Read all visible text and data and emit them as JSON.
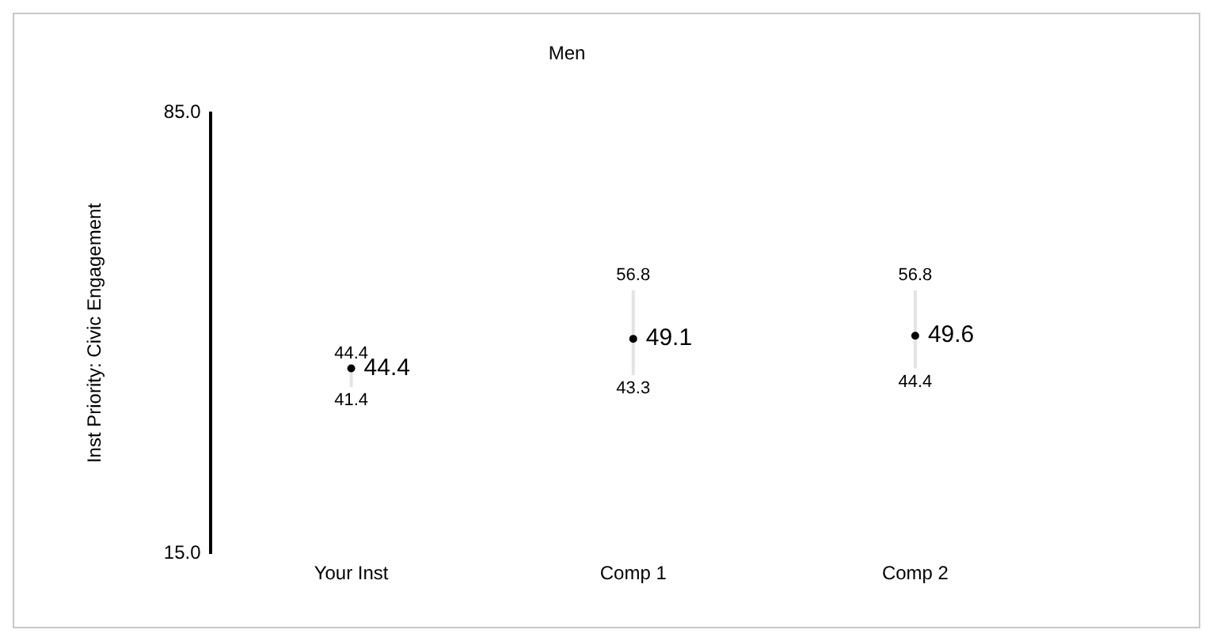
{
  "chart_data": {
    "type": "scatter",
    "title": "Men",
    "ylabel": "Inst Priority: Civic Engagement",
    "categories": [
      "Your Inst",
      "Comp 1",
      "Comp 2"
    ],
    "series": [
      {
        "color": "#000000",
        "values": [
          44.4,
          49.1,
          49.6
        ],
        "errors": [
          [
            41.4,
            44.4
          ],
          [
            43.3,
            56.8
          ],
          [
            44.4,
            56.8
          ]
        ]
      }
    ],
    "annotations": [
      {
        "text": "44.4",
        "x": "Your Inst",
        "y": 44.4
      },
      {
        "text": "41.4",
        "x": "Your Inst",
        "y": 41.4
      },
      {
        "text": "56.8",
        "x": "Comp 1",
        "y": 56.8
      },
      {
        "text": "43.3",
        "x": "Comp 1",
        "y": 43.3
      },
      {
        "text": "56.8",
        "x": "Comp 2",
        "y": 56.8
      },
      {
        "text": "44.4",
        "x": "Comp 2",
        "y": 44.4
      }
    ],
    "ylim": [
      15,
      85
    ],
    "yticks": [
      {
        "value": 15,
        "label": "15.0"
      },
      {
        "value": 85,
        "label": "85.0"
      }
    ],
    "grid": false,
    "legend": false,
    "marker": "circle",
    "data_labels": true
  }
}
